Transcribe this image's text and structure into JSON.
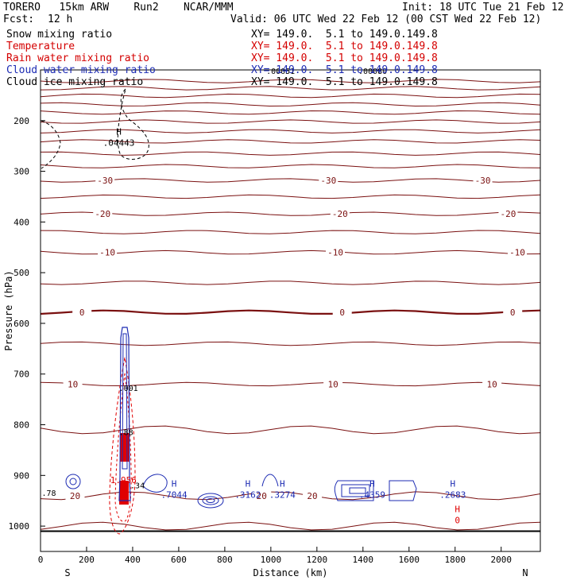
{
  "header": {
    "model": "TORERO   15km ARW    Run2    NCAR/MMM",
    "init": "Init: 18 UTC Tue 21 Feb 12",
    "fcst_label": "Fcst:",
    "fcst_hours": "12 h",
    "valid": "Valid: 06 UTC Wed 22 Feb 12 (00 CST Wed 22 Feb 12)"
  },
  "fields": [
    {
      "name": "Snow mixing ratio",
      "xy": "XY= 149.0.  5.1 to 149.0.149.8",
      "color": "#000000"
    },
    {
      "name": "Temperature",
      "xy": "XY= 149.0.  5.1 to 149.0.149.8",
      "color": "#d40000"
    },
    {
      "name": "Rain water mixing ratio",
      "xy": "XY= 149.0.  5.1 to 149.0.149.8",
      "color": "#d40000"
    },
    {
      "name": "Cloud water mixing ratio",
      "xy": "XY= 149.0.  5.1 to 149.0.149.8",
      "color": "#1c2bb3"
    },
    {
      "name": "Cloud ice mixing ratio",
      "xy": "XY= 149.0.  5.1 to 149.0.149.8",
      "color": "#000000"
    }
  ],
  "colors": {
    "temperature": "#7a1010",
    "rain": "#e00000",
    "cloud_water": "#1c2bb3",
    "snow": "#000000"
  },
  "chart_data": {
    "type": "contour-cross-section",
    "xlabel": "Distance (km)",
    "ylabel": "Pressure (hPa)",
    "xlim": [
      0,
      2170
    ],
    "ylim": [
      1050,
      100
    ],
    "x_ticks": [
      "0",
      "200",
      "400",
      "600",
      "800",
      "1000",
      "1200",
      "1400",
      "1600",
      "1800",
      "2000"
    ],
    "y_ticks": [
      "200",
      "300",
      "400",
      "500",
      "600",
      "700",
      "800",
      "900",
      "1000"
    ],
    "left_end_label": "S",
    "right_end_label": "N",
    "temperature_contours": [
      {
        "p": 122,
        "label": ""
      },
      {
        "p": 136,
        "label": ""
      },
      {
        "p": 151,
        "label": ""
      },
      {
        "p": 168,
        "label": ""
      },
      {
        "p": 184,
        "label": ""
      },
      {
        "p": 202,
        "label": ""
      },
      {
        "p": 221,
        "label": ""
      },
      {
        "p": 241,
        "label": ""
      },
      {
        "p": 265,
        "label": ""
      },
      {
        "p": 290,
        "label": ""
      },
      {
        "p": 318,
        "label": "-30"
      },
      {
        "p": 350,
        "label": ""
      },
      {
        "p": 384,
        "label": "-20"
      },
      {
        "p": 420,
        "label": ""
      },
      {
        "p": 460,
        "label": "-10"
      },
      {
        "p": 520,
        "label": ""
      },
      {
        "p": 578,
        "label": "0"
      },
      {
        "p": 640,
        "label": ""
      },
      {
        "p": 720,
        "label": "10"
      },
      {
        "p": 810,
        "label": ""
      },
      {
        "p": 940,
        "label": "20"
      },
      {
        "p": 1000,
        "label": ""
      }
    ],
    "temperature_label_sets": [
      {
        "p": 318,
        "x": [
          280,
          1250,
          1920
        ],
        "label": "-30"
      },
      {
        "p": 384,
        "x": [
          270,
          1300,
          2030
        ],
        "label": "-20"
      },
      {
        "p": 460,
        "x": [
          290,
          1280,
          2070
        ],
        "label": "-10"
      },
      {
        "p": 578,
        "x": [
          180,
          1310,
          2050
        ],
        "label": "0"
      },
      {
        "p": 720,
        "x": [
          140,
          1270,
          1960
        ],
        "label": "10"
      },
      {
        "p": 940,
        "x": [
          150,
          960,
          1180
        ],
        "label": "20"
      }
    ],
    "maxima_labels": [
      {
        "x": 340,
        "p": 240,
        "mark": "H",
        "value": ".04443",
        "series": "snow"
      },
      {
        "x": 580,
        "p": 935,
        "mark": "H",
        "value": ".7044",
        "series": "cloud_water"
      },
      {
        "x": 900,
        "p": 935,
        "mark": "H",
        "value": ".3162",
        "series": "cloud_water"
      },
      {
        "x": 1050,
        "p": 935,
        "mark": "H",
        "value": ".3274",
        "series": "cloud_water"
      },
      {
        "x": 1440,
        "p": 935,
        "mark": "H",
        "value": ".4359",
        "series": "cloud_water"
      },
      {
        "x": 1790,
        "p": 935,
        "mark": "H",
        "value": ".2683",
        "series": "cloud_water"
      },
      {
        "x": 360,
        "p": 915,
        "mark": "",
        "value": "1.956",
        "series": "rain"
      },
      {
        "x": 1810,
        "p": 985,
        "mark": "H",
        "value": "0",
        "series": "rain"
      }
    ],
    "annotations": [
      {
        "text": ".00051",
        "x": 980,
        "p": 108
      },
      {
        "text": ".00080",
        "x": 1380,
        "p": 108
      },
      {
        "text": ".001",
        "x": 340,
        "p": 733
      },
      {
        "text": ".88",
        "x": 340,
        "p": 820
      },
      {
        "text": ".78",
        "x": 5,
        "p": 940
      },
      {
        "text": ".34",
        "x": 390,
        "p": 925
      }
    ]
  }
}
